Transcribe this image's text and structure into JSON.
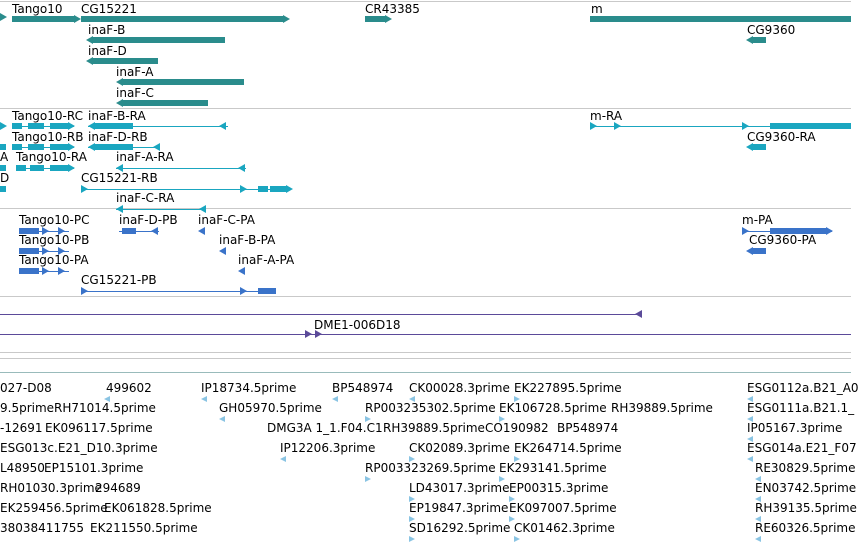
{
  "colors": {
    "gene": "#2a8c8c",
    "transcript": "#1aa6c0",
    "protein": "#3a73c9",
    "clone": "#5b4a99",
    "est": "#8ac4e3",
    "separator": "#c9c9c9"
  },
  "genes": [
    {
      "label": "Tango10"
    },
    {
      "label": "CG15221"
    },
    {
      "label": "inaF-B"
    },
    {
      "label": "inaF-D"
    },
    {
      "label": "inaF-A"
    },
    {
      "label": "inaF-C"
    },
    {
      "label": "CR43385"
    },
    {
      "label": "m"
    },
    {
      "label": "CG9360"
    }
  ],
  "transcripts": [
    {
      "label": "Tango10-RC"
    },
    {
      "label": "inaF-B-RA"
    },
    {
      "label": "Tango10-RB"
    },
    {
      "label": "inaF-D-RB"
    },
    {
      "label": "A"
    },
    {
      "label": "Tango10-RA"
    },
    {
      "label": "inaF-A-RA"
    },
    {
      "label": "D"
    },
    {
      "label": "CG15221-RB"
    },
    {
      "label": "inaF-C-RA"
    },
    {
      "label": "m-RA"
    },
    {
      "label": "CG9360-RA"
    }
  ],
  "proteins": [
    {
      "label": "Tango10-PC"
    },
    {
      "label": "inaF-D-PB"
    },
    {
      "label": "inaF-C-PA"
    },
    {
      "label": "Tango10-PB"
    },
    {
      "label": "inaF-B-PA"
    },
    {
      "label": "Tango10-PA"
    },
    {
      "label": "inaF-A-PA"
    },
    {
      "label": "CG15221-PB"
    },
    {
      "label": "m-PA"
    },
    {
      "label": "CG9360-PA"
    }
  ],
  "clones": [
    {
      "label": "DME1-006D18"
    }
  ],
  "ests": [
    {
      "label": "027-D08"
    },
    {
      "label": "499602"
    },
    {
      "label": "IP18734.5prime"
    },
    {
      "label": "BP548974"
    },
    {
      "label": "CK00028.3prime"
    },
    {
      "label": "EK227895.5prime"
    },
    {
      "label": "ESG0112a.B21_A0"
    },
    {
      "label": "9.5prime"
    },
    {
      "label": "RH71014.5prime"
    },
    {
      "label": "GH05970.5prime"
    },
    {
      "label": "RP003235302.5prime"
    },
    {
      "label": "EK106728.5prime"
    },
    {
      "label": "RH39889.5prime"
    },
    {
      "label": "ESG0111a.B21.1_"
    },
    {
      "label": "-12691"
    },
    {
      "label": "EK096117.5prime"
    },
    {
      "label": "DMG3A 1_1.F04.C1"
    },
    {
      "label": "RH39889.5prime"
    },
    {
      "label": "CO190982"
    },
    {
      "label": "BP548974"
    },
    {
      "label": "IP05167.3prime"
    },
    {
      "label": "ESG013c.E21_D10.3prime"
    },
    {
      "label": "IP12206.3prime"
    },
    {
      "label": "CK02089.3prime"
    },
    {
      "label": "EK264714.5prime"
    },
    {
      "label": "ESG014a.E21_F07"
    },
    {
      "label": "L48950"
    },
    {
      "label": "EP15101.3prime"
    },
    {
      "label": "RP003323269.5prime"
    },
    {
      "label": "EK293141.5prime"
    },
    {
      "label": "RE30829.5prime"
    },
    {
      "label": "RH01030.3prime"
    },
    {
      "label": "294689"
    },
    {
      "label": "LD43017.3prime"
    },
    {
      "label": "EP00315.3prime"
    },
    {
      "label": "EN03742.5prime"
    },
    {
      "label": "EK259456.5prime"
    },
    {
      "label": "EK061828.5prime"
    },
    {
      "label": "EP19847.3prime"
    },
    {
      "label": "EK097007.5prime"
    },
    {
      "label": "RH39135.5prime"
    },
    {
      "label": "38038411755"
    },
    {
      "label": "EK211550.5prime"
    },
    {
      "label": "SD16292.5prime"
    },
    {
      "label": "CK01462.3prime"
    },
    {
      "label": "RE60326.5prime"
    }
  ]
}
